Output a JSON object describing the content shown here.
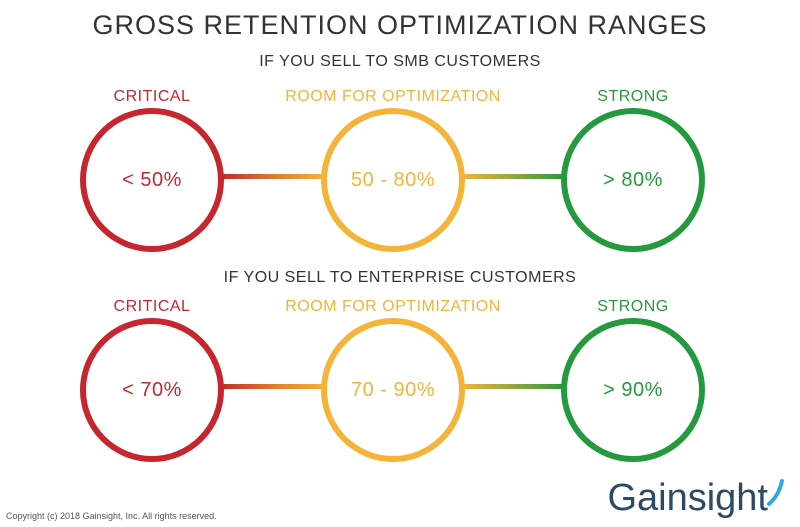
{
  "title": "GROSS RETENTION OPTIMIZATION RANGES",
  "sections": [
    {
      "heading": "IF YOU SELL TO SMB CUSTOMERS",
      "critical": {
        "label": "CRITICAL",
        "value": "< 50%"
      },
      "room": {
        "label": "ROOM FOR OPTIMIZATION",
        "value": "50 - 80%"
      },
      "strong": {
        "label": "STRONG",
        "value": "> 80%"
      }
    },
    {
      "heading": "IF YOU SELL TO ENTERPRISE CUSTOMERS",
      "critical": {
        "label": "CRITICAL",
        "value": "< 70%"
      },
      "room": {
        "label": "ROOM FOR OPTIMIZATION",
        "value": "70 - 90%"
      },
      "strong": {
        "label": "STRONG",
        "value": "> 90%"
      }
    }
  ],
  "colors": {
    "critical": "#c6262e",
    "room": "#f5b33a",
    "strong": "#24993e",
    "logo": "#2b4a63",
    "logo_accent": "#2fa8e0"
  },
  "footer": {
    "copyright": "Copyright (c) 2018 Gainsight, Inc. All rights reserved.",
    "logo_text": "Gainsight"
  }
}
